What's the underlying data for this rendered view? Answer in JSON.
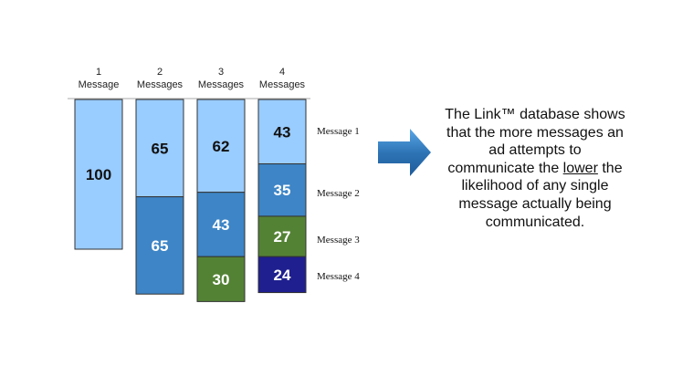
{
  "chart_data": {
    "type": "bar",
    "stacked": true,
    "categories": [
      [
        "1",
        "Message"
      ],
      [
        "2",
        "Messages"
      ],
      [
        "3",
        "Messages"
      ],
      [
        "4",
        "Messages"
      ]
    ],
    "series": [
      {
        "name": "Message 1",
        "values": [
          100,
          65,
          62,
          43
        ],
        "color": "#99CCFF",
        "label_color": "#111111"
      },
      {
        "name": "Message 2",
        "values": [
          null,
          65,
          43,
          35
        ],
        "color": "#3D85C6",
        "label_color": "#ffffff"
      },
      {
        "name": "Message 3",
        "values": [
          null,
          null,
          30,
          27
        ],
        "color": "#548235",
        "label_color": "#ffffff"
      },
      {
        "name": "Message 4",
        "values": [
          null,
          null,
          null,
          24
        ],
        "color": "#1F1F8F",
        "label_color": "#ffffff"
      }
    ],
    "colors": {
      "stroke": "#333333",
      "axis_line": "#aaaaaa"
    }
  },
  "summary": {
    "before": "The Link™ database shows that the more messages an ad attempts to communicate the ",
    "underlined": "lower",
    "after": " the likelihood of any single message actually being communicated."
  },
  "arrow": {
    "icon": "right-arrow-icon",
    "color": "#2E75B6"
  }
}
